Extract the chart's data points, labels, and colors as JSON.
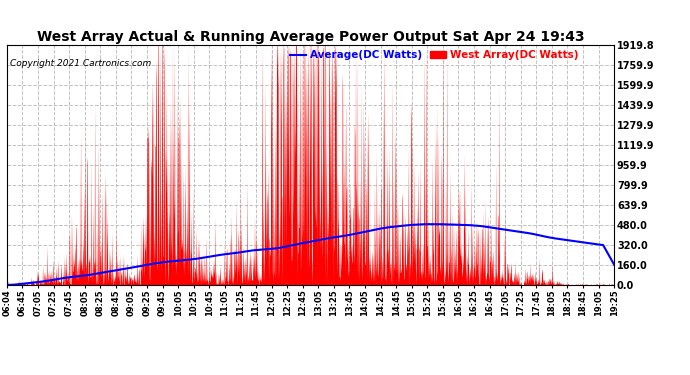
{
  "title": "West Array Actual & Running Average Power Output Sat Apr 24 19:43",
  "copyright": "Copyright 2021 Cartronics.com",
  "legend_avg": "Average(DC Watts)",
  "legend_west": "West Array(DC Watts)",
  "yticks": [
    0.0,
    160.0,
    320.0,
    480.0,
    639.9,
    799.9,
    959.9,
    1119.9,
    1279.9,
    1439.9,
    1599.9,
    1759.9,
    1919.8
  ],
  "ymax": 1919.8,
  "ymin": 0.0,
  "background_color": "#ffffff",
  "grid_color": "#bbbbbb",
  "bar_color": "#ff0000",
  "avg_color": "#0000ff",
  "title_color": "#000000",
  "copyright_color": "#000000",
  "legend_avg_color": "#0000ff",
  "legend_west_color": "#ff0000",
  "title_fontsize": 11,
  "xtick_labels": [
    "06:04",
    "06:45",
    "07:05",
    "07:25",
    "07:45",
    "08:05",
    "08:25",
    "08:45",
    "09:05",
    "09:25",
    "09:45",
    "10:05",
    "10:25",
    "10:45",
    "11:05",
    "11:25",
    "11:45",
    "12:05",
    "12:25",
    "12:45",
    "13:05",
    "13:25",
    "13:45",
    "14:05",
    "14:25",
    "14:45",
    "15:05",
    "15:25",
    "15:45",
    "16:05",
    "16:25",
    "16:45",
    "17:05",
    "17:25",
    "17:45",
    "18:05",
    "18:25",
    "18:45",
    "19:05",
    "19:25"
  ]
}
